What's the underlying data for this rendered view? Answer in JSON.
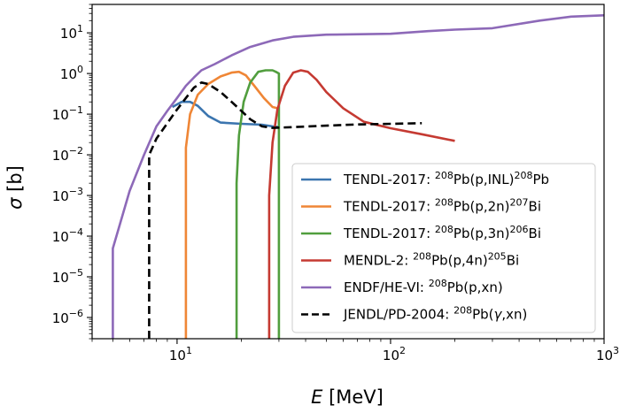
{
  "chart_data": {
    "type": "line",
    "xscale": "log",
    "yscale": "log",
    "xlim": [
      4,
      1000
    ],
    "ylim": [
      3e-07,
      50
    ],
    "xlabel_symbol": "E",
    "xlabel_unit": "[MeV]",
    "ylabel_symbol": "σ",
    "ylabel_unit": "[b]",
    "x_tick_labels": [
      {
        "value": 10,
        "base": "10",
        "exp": "1"
      },
      {
        "value": 100,
        "base": "10",
        "exp": "2"
      },
      {
        "value": 1000,
        "base": "10",
        "exp": "3"
      }
    ],
    "y_tick_labels": [
      {
        "value": 10,
        "base": "10",
        "exp": "1"
      },
      {
        "value": 1,
        "base": "10",
        "exp": "0"
      },
      {
        "value": 0.1,
        "base": "10",
        "exp": "−1"
      },
      {
        "value": 0.01,
        "base": "10",
        "exp": "−2"
      },
      {
        "value": 0.001,
        "base": "10",
        "exp": "−3"
      },
      {
        "value": 0.0001,
        "base": "10",
        "exp": "−4"
      },
      {
        "value": 1e-05,
        "base": "10",
        "exp": "−5"
      },
      {
        "value": 1e-06,
        "base": "10",
        "exp": "−6"
      }
    ],
    "legend_position": "lower-right",
    "series": [
      {
        "id": "tendl-inl",
        "legend": [
          {
            "t": "TENDL-2017: "
          },
          {
            "t": "208",
            "sup": true
          },
          {
            "t": "Pb(p,INL)"
          },
          {
            "t": "208",
            "sup": true
          },
          {
            "t": "Pb"
          }
        ],
        "color": "#3b75af",
        "dash": false,
        "points": [
          [
            9.5,
            0.15
          ],
          [
            10.5,
            0.2
          ],
          [
            11.5,
            0.2
          ],
          [
            12.5,
            0.16
          ],
          [
            14,
            0.09
          ],
          [
            16,
            0.062
          ],
          [
            20,
            0.058
          ],
          [
            25,
            0.055
          ],
          [
            28,
            0.05
          ],
          [
            30,
            0.048
          ]
        ]
      },
      {
        "id": "tendl-2n",
        "legend": [
          {
            "t": "TENDL-2017: "
          },
          {
            "t": "208",
            "sup": true
          },
          {
            "t": "Pb(p,2n)"
          },
          {
            "t": "207",
            "sup": true
          },
          {
            "t": "Bi"
          }
        ],
        "color": "#ef8636",
        "dash": false,
        "points": [
          [
            11,
            3e-07
          ],
          [
            11,
            0.015
          ],
          [
            11.5,
            0.1
          ],
          [
            12.5,
            0.3
          ],
          [
            14,
            0.55
          ],
          [
            16,
            0.85
          ],
          [
            18,
            1.05
          ],
          [
            19.5,
            1.1
          ],
          [
            21,
            0.9
          ],
          [
            23,
            0.5
          ],
          [
            25.5,
            0.25
          ],
          [
            28,
            0.15
          ],
          [
            29.5,
            0.14
          ]
        ]
      },
      {
        "id": "tendl-3n",
        "legend": [
          {
            "t": "TENDL-2017: "
          },
          {
            "t": "208",
            "sup": true
          },
          {
            "t": "Pb(p,3n)"
          },
          {
            "t": "206",
            "sup": true
          },
          {
            "t": "Bi"
          }
        ],
        "color": "#519e3e",
        "dash": false,
        "points": [
          [
            19,
            3e-07
          ],
          [
            19,
            0.002
          ],
          [
            19.5,
            0.03
          ],
          [
            20.5,
            0.2
          ],
          [
            22,
            0.6
          ],
          [
            24,
            1.1
          ],
          [
            26,
            1.2
          ],
          [
            28,
            1.2
          ],
          [
            29,
            1.1
          ],
          [
            30,
            1.0
          ],
          [
            30,
            3e-07
          ]
        ]
      },
      {
        "id": "mendl-4n",
        "legend": [
          {
            "t": "MENDL-2: "
          },
          {
            "t": "208",
            "sup": true
          },
          {
            "t": "Pb(p,4n)"
          },
          {
            "t": "205",
            "sup": true
          },
          {
            "t": "Bi"
          }
        ],
        "color": "#c53a32",
        "dash": false,
        "points": [
          [
            27,
            3e-07
          ],
          [
            27,
            0.001
          ],
          [
            28,
            0.02
          ],
          [
            29.5,
            0.13
          ],
          [
            32,
            0.5
          ],
          [
            35,
            1.05
          ],
          [
            38,
            1.2
          ],
          [
            41,
            1.1
          ],
          [
            45,
            0.7
          ],
          [
            50,
            0.35
          ],
          [
            60,
            0.14
          ],
          [
            75,
            0.065
          ],
          [
            100,
            0.045
          ],
          [
            140,
            0.032
          ],
          [
            200,
            0.022
          ]
        ]
      },
      {
        "id": "endf-xn",
        "legend": [
          {
            "t": "ENDF/HE-VI: "
          },
          {
            "t": "208",
            "sup": true
          },
          {
            "t": "Pb(p,xn)"
          }
        ],
        "color": "#8d69b8",
        "dash": false,
        "points": [
          [
            5,
            3e-07
          ],
          [
            5,
            5e-05
          ],
          [
            6,
            0.0013
          ],
          [
            7,
            0.01
          ],
          [
            8,
            0.05
          ],
          [
            9,
            0.12
          ],
          [
            10,
            0.25
          ],
          [
            11,
            0.5
          ],
          [
            12,
            0.8
          ],
          [
            13,
            1.2
          ],
          [
            15,
            1.7
          ],
          [
            18,
            2.8
          ],
          [
            22,
            4.5
          ],
          [
            28,
            6.5
          ],
          [
            35,
            8
          ],
          [
            50,
            9
          ],
          [
            100,
            9.5
          ],
          [
            150,
            11
          ],
          [
            200,
            12
          ],
          [
            300,
            13
          ],
          [
            500,
            20
          ],
          [
            700,
            25
          ],
          [
            1000,
            27
          ]
        ]
      },
      {
        "id": "jendl-gamma",
        "legend": [
          {
            "t": "JENDL/PD-2004: "
          },
          {
            "t": "208",
            "sup": true
          },
          {
            "t": "Pb("
          },
          {
            "t": "γ",
            "italic": true
          },
          {
            "t": ",xn)"
          }
        ],
        "color": "#000000",
        "dash": true,
        "points": [
          [
            7.4,
            3e-07
          ],
          [
            7.4,
            0.01
          ],
          [
            8,
            0.025
          ],
          [
            9,
            0.06
          ],
          [
            10,
            0.13
          ],
          [
            11,
            0.25
          ],
          [
            12,
            0.45
          ],
          [
            13,
            0.6
          ],
          [
            14,
            0.55
          ],
          [
            16,
            0.35
          ],
          [
            18,
            0.2
          ],
          [
            20,
            0.12
          ],
          [
            22,
            0.075
          ],
          [
            25,
            0.05
          ],
          [
            28,
            0.046
          ],
          [
            35,
            0.048
          ],
          [
            50,
            0.052
          ],
          [
            70,
            0.056
          ],
          [
            100,
            0.058
          ],
          [
            140,
            0.06
          ]
        ]
      }
    ]
  }
}
